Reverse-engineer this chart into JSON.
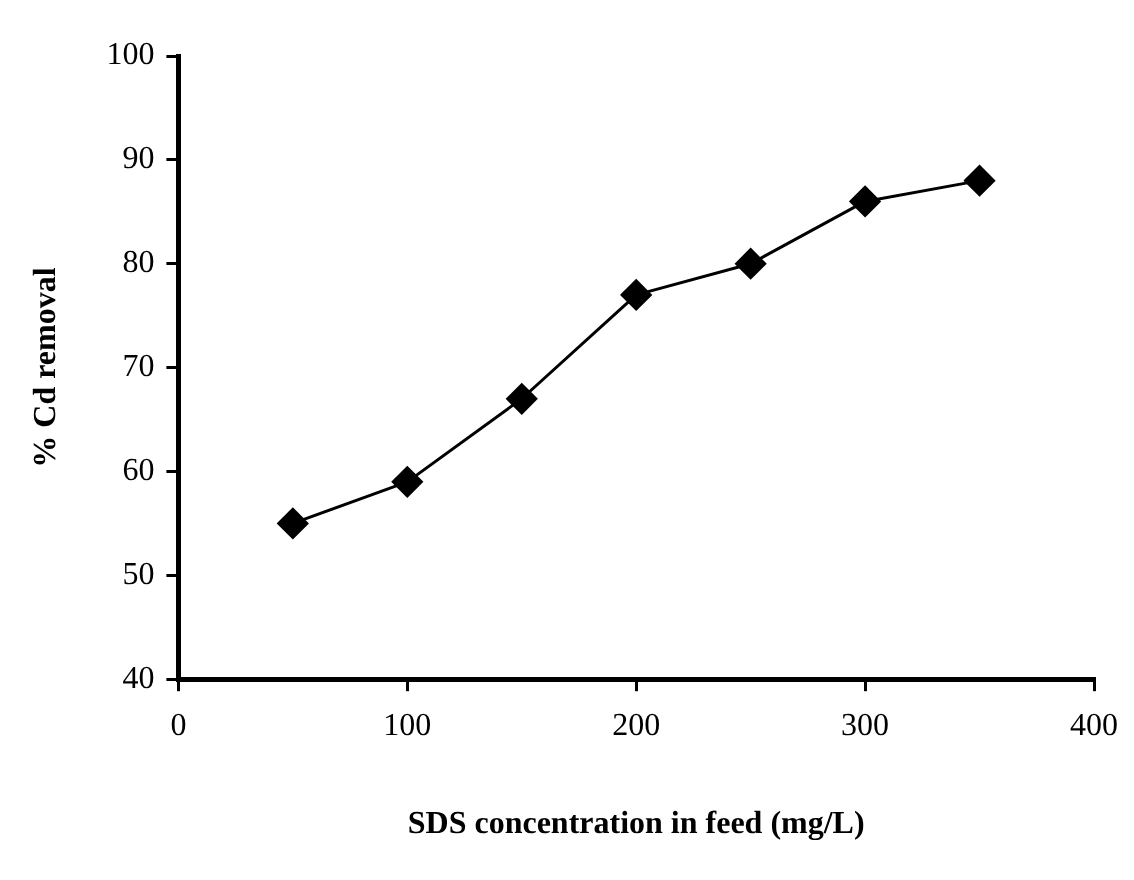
{
  "chart_data": {
    "type": "line",
    "xlabel": "SDS concentration in feed (mg/L)",
    "ylabel": "% Cd removal",
    "x": [
      50,
      100,
      150,
      200,
      250,
      300,
      350
    ],
    "series": [
      {
        "color": "#000000",
        "values": [
          55,
          59,
          67,
          77,
          80,
          86,
          88
        ]
      }
    ],
    "xlim": [
      0,
      400
    ],
    "xticks": [
      0,
      100,
      200,
      300,
      400
    ],
    "ylim": [
      40,
      100
    ],
    "yticks": [
      40,
      50,
      60,
      70,
      80,
      90,
      100
    ],
    "marker": "diamond",
    "line_style": "solid",
    "grid": false,
    "legend": false
  }
}
